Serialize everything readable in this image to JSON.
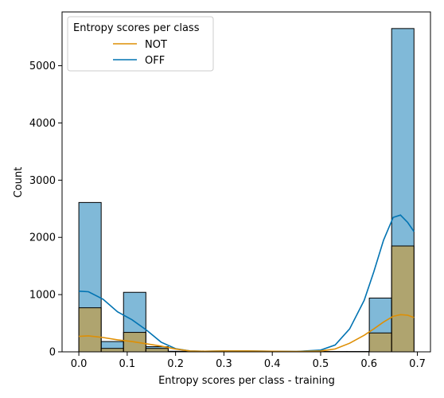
{
  "chart_data": {
    "type": "histogram",
    "xlabel": "Entropy scores per class - training",
    "ylabel": "Count",
    "xlim": [
      -0.0347,
      0.7271
    ],
    "ylim": [
      0,
      5940
    ],
    "x_ticks": [
      "0.0",
      "0.1",
      "0.2",
      "0.3",
      "0.4",
      "0.5",
      "0.6",
      "0.7"
    ],
    "x_tick_values": [
      0.0,
      0.1,
      0.2,
      0.3,
      0.4,
      0.5,
      0.6,
      0.7
    ],
    "y_ticks": [
      "0",
      "1000",
      "2000",
      "3000",
      "4000",
      "5000"
    ],
    "y_tick_values": [
      0,
      1000,
      2000,
      3000,
      4000,
      5000
    ],
    "bin_edges": [
      0.0,
      0.0462,
      0.0924,
      0.1386,
      0.1848,
      0.231,
      0.2772,
      0.3234,
      0.3696,
      0.4158,
      0.462,
      0.5082,
      0.5544,
      0.6006,
      0.6468,
      0.693
    ],
    "legend": {
      "title": "Entropy scores per class",
      "position": "upper-left",
      "entries": [
        "NOT",
        "OFF"
      ]
    },
    "series": [
      {
        "name": "OFF",
        "color": "#0173b2",
        "counts": [
          2610,
          180,
          1040,
          90,
          10,
          5,
          5,
          5,
          5,
          5,
          5,
          5,
          5,
          940,
          5650
        ],
        "kde_x": [
          0.0,
          0.02,
          0.05,
          0.08,
          0.11,
          0.14,
          0.17,
          0.2,
          0.23,
          0.26,
          0.3,
          0.35,
          0.4,
          0.45,
          0.5,
          0.53,
          0.56,
          0.59,
          0.61,
          0.63,
          0.65,
          0.665,
          0.68,
          0.693
        ],
        "kde_y": [
          1060,
          1050,
          920,
          700,
          560,
          380,
          170,
          55,
          15,
          10,
          15,
          15,
          10,
          5,
          30,
          120,
          400,
          900,
          1400,
          1950,
          2350,
          2390,
          2260,
          2100
        ]
      },
      {
        "name": "NOT",
        "color": "#de8f05",
        "counts": [
          770,
          60,
          340,
          60,
          5,
          5,
          5,
          5,
          5,
          5,
          5,
          5,
          5,
          330,
          1850
        ],
        "kde_x": [
          0.0,
          0.02,
          0.05,
          0.08,
          0.11,
          0.14,
          0.17,
          0.2,
          0.23,
          0.26,
          0.3,
          0.35,
          0.4,
          0.45,
          0.5,
          0.53,
          0.56,
          0.59,
          0.61,
          0.63,
          0.65,
          0.665,
          0.68,
          0.693
        ],
        "kde_y": [
          270,
          280,
          250,
          210,
          180,
          140,
          100,
          50,
          15,
          10,
          15,
          15,
          10,
          5,
          15,
          50,
          150,
          290,
          400,
          520,
          620,
          650,
          640,
          600
        ]
      }
    ]
  }
}
